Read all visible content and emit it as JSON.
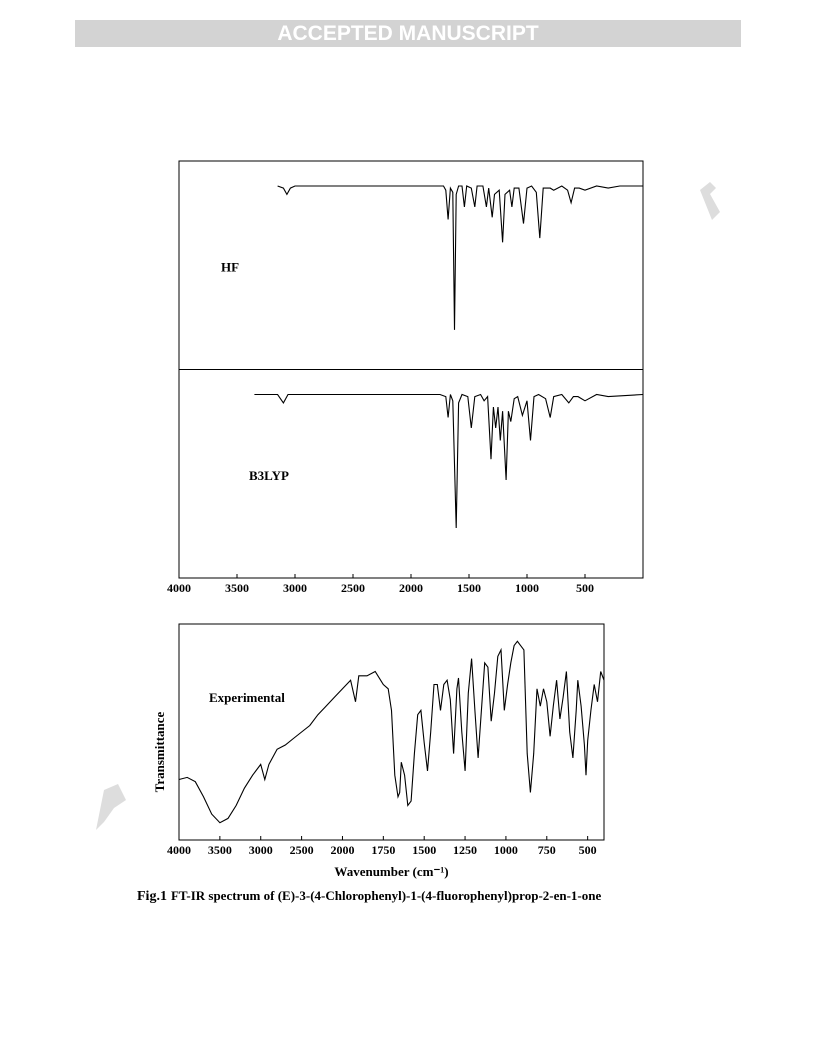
{
  "header": "ACCEPTED MANUSCRIPT",
  "chart_data": [
    {
      "type": "line",
      "panels": "stacked",
      "color": "#000000",
      "xlim": [
        4000,
        0
      ],
      "ylim": [
        0,
        100
      ],
      "xticks": [
        4000,
        3500,
        3000,
        2500,
        2000,
        1500,
        1000,
        500
      ],
      "series": [
        {
          "name": "HF",
          "x": [
            3150,
            3100,
            3070,
            3040,
            3000,
            1720,
            1700,
            1680,
            1660,
            1640,
            1625,
            1610,
            1590,
            1560,
            1540,
            1520,
            1480,
            1450,
            1430,
            1380,
            1350,
            1330,
            1300,
            1280,
            1240,
            1210,
            1190,
            1150,
            1130,
            1110,
            1070,
            1030,
            1000,
            960,
            920,
            890,
            860,
            800,
            770,
            700,
            650,
            620,
            590,
            550,
            500,
            400,
            300,
            200,
            0
          ],
          "values": [
            88,
            87,
            84,
            87,
            88,
            88,
            86,
            72,
            87,
            85,
            19,
            84,
            88,
            88,
            78,
            88,
            87,
            78,
            88,
            88,
            78,
            87,
            73,
            84,
            86,
            61,
            84,
            86,
            78,
            87,
            87,
            70,
            87,
            88,
            85,
            63,
            87,
            87,
            86,
            88,
            86,
            80,
            87,
            87,
            86,
            88,
            87,
            88,
            88
          ]
        },
        {
          "name": "B3LYP",
          "x": [
            3350,
            3150,
            3100,
            3060,
            1750,
            1700,
            1680,
            1660,
            1640,
            1610,
            1590,
            1560,
            1510,
            1480,
            1450,
            1400,
            1370,
            1340,
            1310,
            1290,
            1270,
            1250,
            1230,
            1210,
            1180,
            1160,
            1140,
            1110,
            1080,
            1040,
            1000,
            970,
            940,
            900,
            840,
            800,
            770,
            700,
            640,
            600,
            560,
            500,
            400,
            300,
            0
          ],
          "values": [
            88,
            88,
            84,
            88,
            88,
            87,
            77,
            88,
            85,
            24,
            84,
            88,
            87,
            72,
            87,
            88,
            85,
            87,
            57,
            82,
            72,
            82,
            66,
            80,
            47,
            80,
            75,
            86,
            87,
            78,
            85,
            66,
            87,
            88,
            86,
            77,
            87,
            88,
            84,
            87,
            87,
            85,
            88,
            87,
            88
          ]
        }
      ]
    },
    {
      "type": "line",
      "color": "#000000",
      "xlim": [
        4000,
        400
      ],
      "ylim": [
        0,
        100
      ],
      "xscale_change_at": 2000,
      "xticks": [
        4000,
        3500,
        3000,
        2500,
        2000,
        1750,
        1500,
        1250,
        1000,
        750,
        500
      ],
      "xlabel": "Wavenumber (cm⁻¹)",
      "ylabel": "Transmittance",
      "series": [
        {
          "name": "Experimental",
          "x": [
            4000,
            3900,
            3800,
            3700,
            3600,
            3500,
            3400,
            3300,
            3200,
            3100,
            3000,
            2950,
            2900,
            2800,
            2700,
            2600,
            2500,
            2400,
            2300,
            2200,
            2100,
            2000,
            1950,
            1920,
            1900,
            1850,
            1800,
            1750,
            1720,
            1700,
            1680,
            1660,
            1650,
            1640,
            1620,
            1600,
            1580,
            1560,
            1540,
            1520,
            1500,
            1480,
            1460,
            1440,
            1420,
            1400,
            1380,
            1360,
            1340,
            1320,
            1300,
            1290,
            1270,
            1250,
            1230,
            1210,
            1190,
            1170,
            1150,
            1130,
            1110,
            1090,
            1070,
            1050,
            1030,
            1010,
            990,
            970,
            950,
            930,
            910,
            890,
            870,
            850,
            830,
            810,
            790,
            770,
            750,
            730,
            710,
            690,
            670,
            650,
            630,
            610,
            590,
            570,
            560,
            540,
            520,
            510,
            500,
            480,
            460,
            440,
            420,
            400
          ],
          "values": [
            28,
            29,
            27,
            20,
            12,
            8,
            10,
            16,
            24,
            30,
            35,
            28,
            35,
            42,
            44,
            47,
            50,
            53,
            58,
            62,
            66,
            70,
            74,
            64,
            76,
            76,
            78,
            72,
            70,
            60,
            30,
            20,
            22,
            36,
            30,
            16,
            18,
            40,
            58,
            60,
            45,
            32,
            50,
            72,
            72,
            60,
            72,
            74,
            65,
            40,
            70,
            75,
            50,
            32,
            68,
            84,
            60,
            38,
            60,
            82,
            80,
            55,
            68,
            85,
            88,
            60,
            72,
            82,
            90,
            92,
            90,
            88,
            40,
            22,
            40,
            70,
            62,
            70,
            64,
            48,
            62,
            74,
            56,
            66,
            78,
            50,
            38,
            60,
            74,
            62,
            44,
            30,
            46,
            60,
            72,
            64,
            78,
            74
          ]
        }
      ]
    }
  ],
  "caption": {
    "label": "Fig.1",
    "text": "FT-IR spectrum of (E)-3-(4-Chlorophenyl)-1-(4-fluorophenyl)prop-2-en-1-one"
  }
}
